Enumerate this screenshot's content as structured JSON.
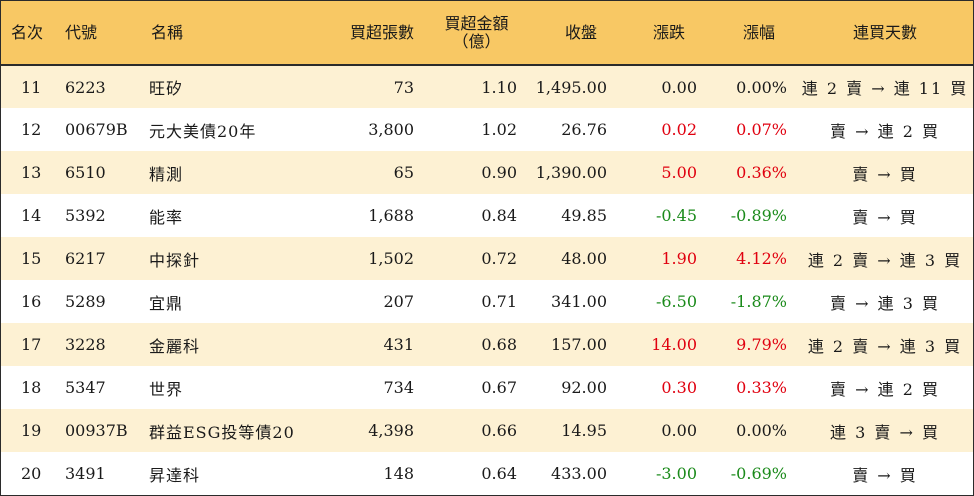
{
  "header": {
    "rank": "名次",
    "code": "代號",
    "name": "名稱",
    "net_volume": "買超張數",
    "net_amount_line1": "買超金額",
    "net_amount_line2": "（億）",
    "close": "收盤",
    "change": "漲跌",
    "change_pct": "漲幅",
    "consecutive_days": "連買天數"
  },
  "colors": {
    "header_bg": "#f8c864",
    "stripe_bg": "#fdf1d3",
    "up": "#e0000f",
    "down": "#1a8a1a"
  },
  "rows": [
    {
      "rank": "11",
      "code": "6223",
      "name": "旺矽",
      "net_volume": "73",
      "net_amount": "1.10",
      "close": "1,495.00",
      "change": "0.00",
      "change_pct": "0.00%",
      "trend": "flat",
      "days": "連 2 賣 → 連 11 買"
    },
    {
      "rank": "12",
      "code": "00679B",
      "name": "元大美債20年",
      "net_volume": "3,800",
      "net_amount": "1.02",
      "close": "26.76",
      "change": "0.02",
      "change_pct": "0.07%",
      "trend": "up",
      "days": "賣 → 連 2 買"
    },
    {
      "rank": "13",
      "code": "6510",
      "name": "精測",
      "net_volume": "65",
      "net_amount": "0.90",
      "close": "1,390.00",
      "change": "5.00",
      "change_pct": "0.36%",
      "trend": "up",
      "days": "賣 → 買"
    },
    {
      "rank": "14",
      "code": "5392",
      "name": "能率",
      "net_volume": "1,688",
      "net_amount": "0.84",
      "close": "49.85",
      "change": "-0.45",
      "change_pct": "-0.89%",
      "trend": "down",
      "days": "賣 → 買"
    },
    {
      "rank": "15",
      "code": "6217",
      "name": "中探針",
      "net_volume": "1,502",
      "net_amount": "0.72",
      "close": "48.00",
      "change": "1.90",
      "change_pct": "4.12%",
      "trend": "up",
      "days": "連 2 賣 → 連 3 買"
    },
    {
      "rank": "16",
      "code": "5289",
      "name": "宜鼎",
      "net_volume": "207",
      "net_amount": "0.71",
      "close": "341.00",
      "change": "-6.50",
      "change_pct": "-1.87%",
      "trend": "down",
      "days": "賣 → 連 3 買"
    },
    {
      "rank": "17",
      "code": "3228",
      "name": "金麗科",
      "net_volume": "431",
      "net_amount": "0.68",
      "close": "157.00",
      "change": "14.00",
      "change_pct": "9.79%",
      "trend": "up",
      "days": "連 2 賣 → 連 3 買"
    },
    {
      "rank": "18",
      "code": "5347",
      "name": "世界",
      "net_volume": "734",
      "net_amount": "0.67",
      "close": "92.00",
      "change": "0.30",
      "change_pct": "0.33%",
      "trend": "up",
      "days": "賣 → 連 2 買"
    },
    {
      "rank": "19",
      "code": "00937B",
      "name": "群益ESG投等債20",
      "net_volume": "4,398",
      "net_amount": "0.66",
      "close": "14.95",
      "change": "0.00",
      "change_pct": "0.00%",
      "trend": "flat",
      "days": "連 3 賣 → 買"
    },
    {
      "rank": "20",
      "code": "3491",
      "name": "昇達科",
      "net_volume": "148",
      "net_amount": "0.64",
      "close": "433.00",
      "change": "-3.00",
      "change_pct": "-0.69%",
      "trend": "down",
      "days": "賣 → 買"
    }
  ]
}
